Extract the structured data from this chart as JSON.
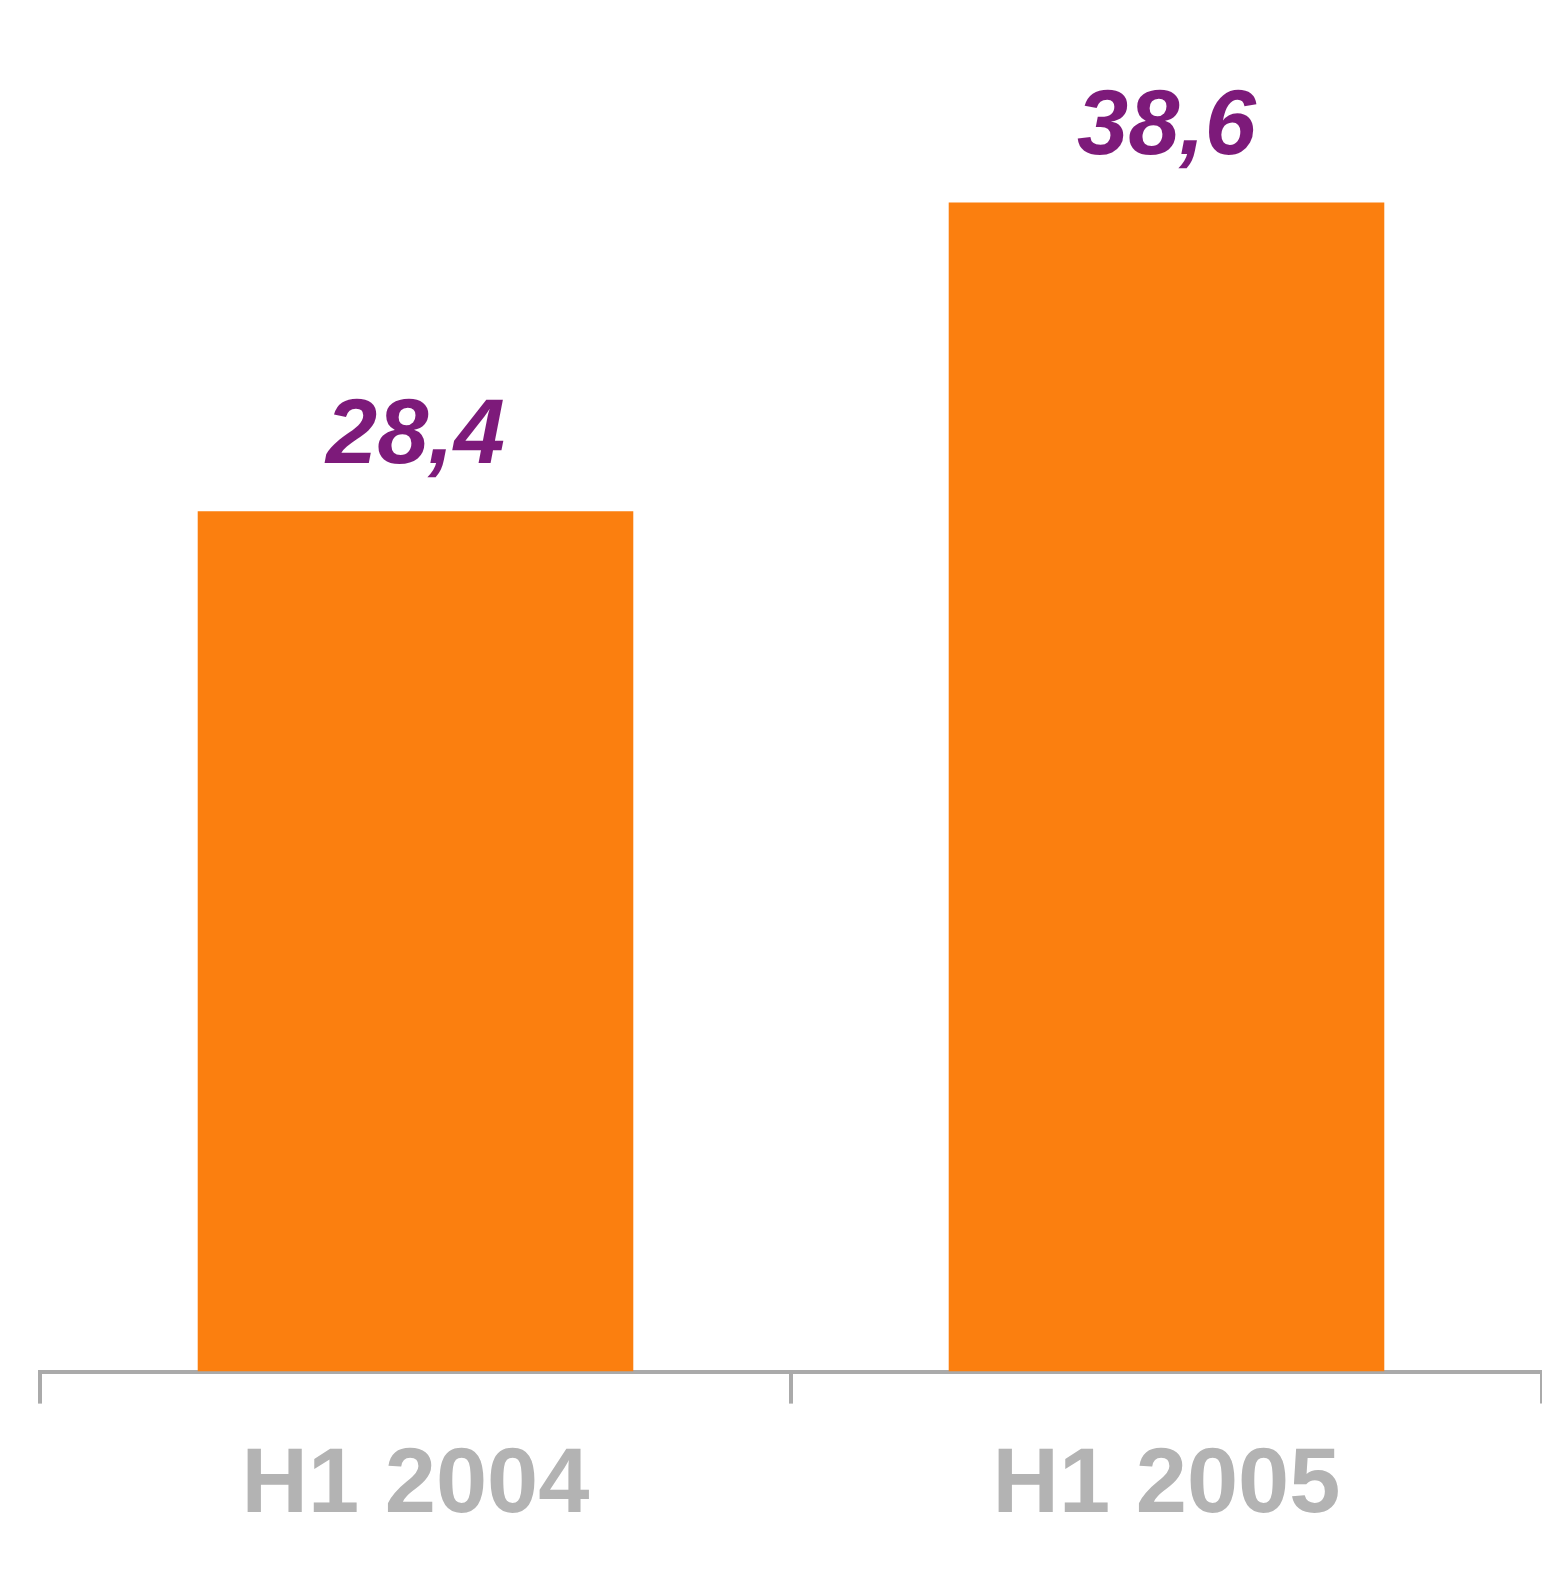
{
  "chart_data": {
    "type": "bar",
    "categories": [
      "H1 2004",
      "H1 2005"
    ],
    "values": [
      28.4,
      38.6
    ],
    "color": "#fb7f0f",
    "value_labels": [
      "28,4",
      "38,6"
    ],
    "grid": false,
    "legend": false
  }
}
